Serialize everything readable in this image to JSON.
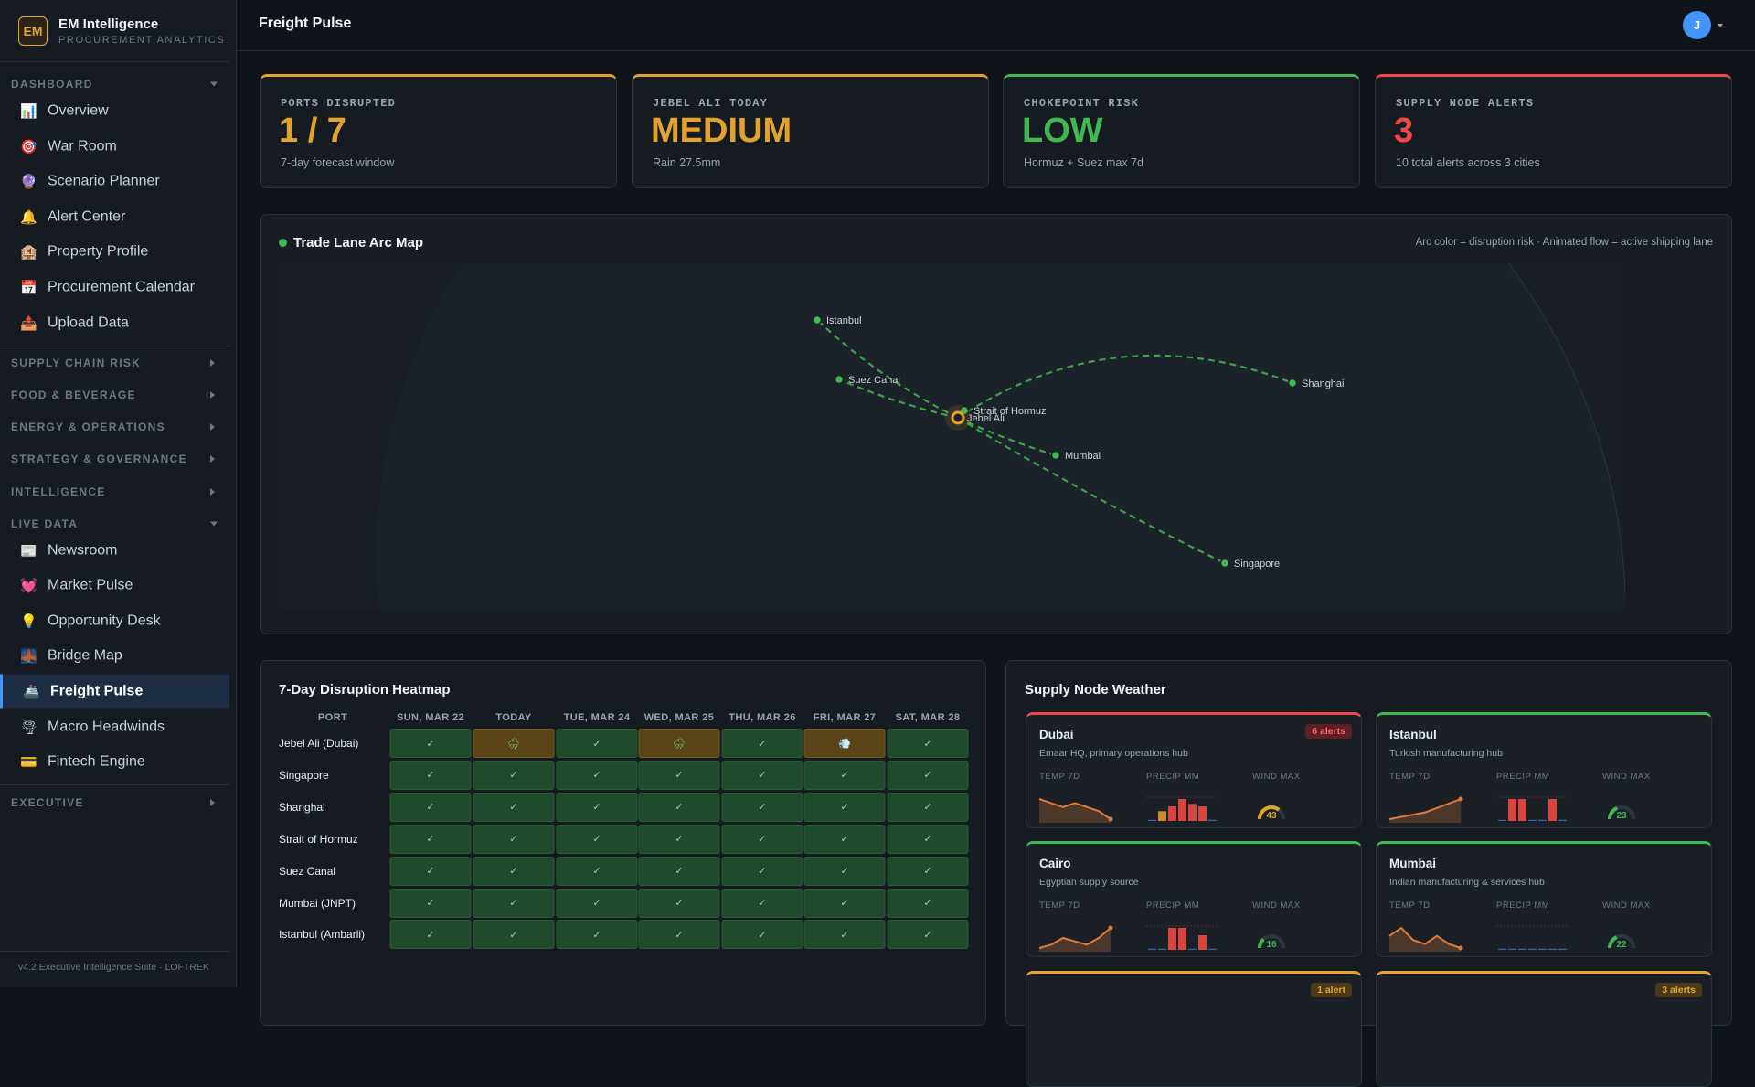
{
  "brand": {
    "logo": "EM",
    "name": "EM Intelligence",
    "tagline": "PROCUREMENT ANALYTICS"
  },
  "sidebar": {
    "sections": [
      {
        "title": "DASHBOARD",
        "open": true,
        "items": [
          {
            "icon": "📊",
            "label": "Overview"
          },
          {
            "icon": "🎯",
            "label": "War Room"
          },
          {
            "icon": "🔮",
            "label": "Scenario Planner"
          },
          {
            "icon": "🔔",
            "label": "Alert Center"
          },
          {
            "icon": "🏨",
            "label": "Property Profile"
          },
          {
            "icon": "📅",
            "label": "Procurement Calendar"
          },
          {
            "icon": "📤",
            "label": "Upload Data"
          }
        ]
      },
      {
        "title": "SUPPLY CHAIN RISK",
        "open": false
      },
      {
        "title": "FOOD & BEVERAGE",
        "open": false
      },
      {
        "title": "ENERGY & OPERATIONS",
        "open": false
      },
      {
        "title": "STRATEGY & GOVERNANCE",
        "open": false
      },
      {
        "title": "INTELLIGENCE",
        "open": false
      },
      {
        "title": "LIVE DATA",
        "open": true,
        "items": [
          {
            "icon": "📰",
            "label": "Newsroom"
          },
          {
            "icon": "💓",
            "label": "Market Pulse"
          },
          {
            "icon": "💡",
            "label": "Opportunity Desk"
          },
          {
            "icon": "🌉",
            "label": "Bridge Map"
          },
          {
            "icon": "🚢",
            "label": "Freight Pulse",
            "active": true
          },
          {
            "icon": "🌪",
            "label": "Macro Headwinds"
          },
          {
            "icon": "💳",
            "label": "Fintech Engine"
          }
        ]
      },
      {
        "title": "EXECUTIVE",
        "open": false
      }
    ],
    "footer": "v4.2 Executive Intelligence Suite · LOFTREK"
  },
  "header": {
    "title": "Freight Pulse",
    "avatar": "J"
  },
  "kpis": [
    {
      "label": "PORTS DISRUPTED",
      "value": "1 / 7",
      "note": "7-day forecast window",
      "color": "#e3a32b"
    },
    {
      "label": "JEBEL ALI TODAY",
      "value": "MEDIUM",
      "note": "Rain 27.5mm",
      "color": "#e3a32b"
    },
    {
      "label": "CHOKEPOINT RISK",
      "value": "LOW",
      "note": "Hormuz + Suez max 7d",
      "color": "#3fb950"
    },
    {
      "label": "SUPPLY NODE ALERTS",
      "value": 3,
      "note": "10 total alerts across 3 cities",
      "color": "#f04848"
    }
  ],
  "map": {
    "title": "Trade Lane Arc Map",
    "legend": "Arc color = disruption risk · Animated flow = active shipping lane",
    "arc_color": "#3fb950",
    "nodes": [
      {
        "label": "Istanbul"
      },
      {
        "label": "Suez Canal"
      },
      {
        "label": "Strait of Hormuz"
      },
      {
        "label": "Jebel Ali",
        "hub": true
      },
      {
        "label": "Shanghai"
      },
      {
        "label": "Mumbai"
      },
      {
        "label": "Singapore"
      }
    ]
  },
  "heatmap": {
    "title": "7-Day Disruption Heatmap",
    "columns": [
      "PORT",
      "SUN, MAR 22",
      "TODAY",
      "TUE, MAR 24",
      "WED, MAR 25",
      "THU, MAR 26",
      "FRI, MAR 27",
      "SAT, MAR 28"
    ],
    "rows": [
      {
        "port": "Jebel Ali (Dubai)",
        "cells": [
          "✓",
          "🌧",
          "✓",
          "🌧",
          "✓",
          "💨",
          "✓"
        ]
      },
      {
        "port": "Singapore",
        "cells": [
          "✓",
          "✓",
          "✓",
          "✓",
          "✓",
          "✓",
          "✓"
        ]
      },
      {
        "port": "Shanghai",
        "cells": [
          "✓",
          "✓",
          "✓",
          "✓",
          "✓",
          "✓",
          "✓"
        ]
      },
      {
        "port": "Strait of Hormuz",
        "cells": [
          "✓",
          "✓",
          "✓",
          "✓",
          "✓",
          "✓",
          "✓"
        ]
      },
      {
        "port": "Suez Canal",
        "cells": [
          "✓",
          "✓",
          "✓",
          "✓",
          "✓",
          "✓",
          "✓"
        ]
      },
      {
        "port": "Mumbai (JNPT)",
        "cells": [
          "✓",
          "✓",
          "✓",
          "✓",
          "✓",
          "✓",
          "✓"
        ]
      },
      {
        "port": "Istanbul (Ambarli)",
        "cells": [
          "✓",
          "✓",
          "✓",
          "✓",
          "✓",
          "✓",
          "✓"
        ]
      }
    ]
  },
  "weather": {
    "title": "Supply Node Weather",
    "labels": [
      "TEMP 7D",
      "PRECIP MM",
      "WIND MAX"
    ],
    "cards": [
      {
        "city": "Dubai",
        "desc": "Emaar HQ, primary operations hub",
        "badge": "6 alerts",
        "color": "#f04848",
        "temp": [
          30,
          29,
          28,
          29,
          28,
          27,
          25
        ],
        "precip": [
          0,
          4,
          6,
          9,
          7,
          6,
          0
        ],
        "wind": 43,
        "wind_color": "#e3a32b"
      },
      {
        "city": "Istanbul",
        "desc": "Turkish manufacturing hub",
        "color": "#3fb950",
        "temp": [
          12,
          13,
          14,
          15,
          17,
          19,
          21
        ],
        "precip": [
          0,
          0.3,
          0.3,
          0,
          0,
          0.3,
          0
        ],
        "wind": 23,
        "wind_color": "#3fb950"
      },
      {
        "city": "Cairo",
        "desc": "Egyptian supply source",
        "color": "#3fb950",
        "temp": [
          24,
          25,
          27,
          26,
          25,
          27,
          30
        ],
        "precip": [
          0,
          0,
          0.3,
          0.3,
          0,
          0.2,
          0
        ],
        "wind": 16,
        "wind_color": "#3fb950"
      },
      {
        "city": "Mumbai",
        "desc": "Indian manufacturing & services hub",
        "color": "#3fb950",
        "temp": [
          31,
          33,
          30,
          29,
          31,
          29,
          28
        ],
        "precip": [
          0,
          0,
          0,
          0,
          0,
          0,
          0
        ],
        "wind": 22,
        "wind_color": "#3fb950"
      },
      {
        "badge": "1 alert",
        "color": "#e3a32b"
      },
      {
        "badge": "3 alerts",
        "color": "#e3a32b"
      }
    ]
  }
}
